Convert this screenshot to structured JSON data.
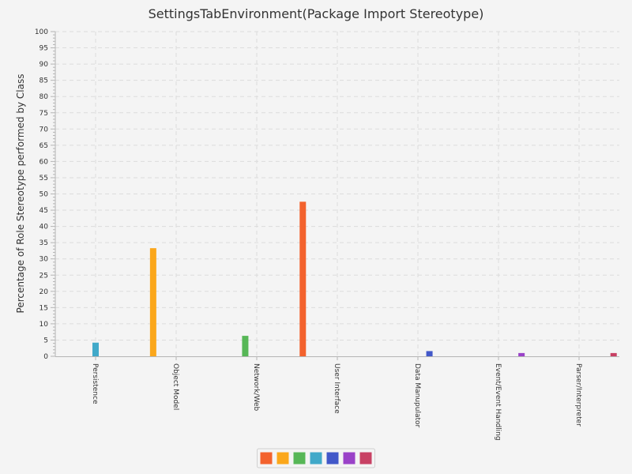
{
  "chart_data": {
    "type": "bar",
    "title": "SettingsTabEnvironment(Package Import Stereotype)",
    "xlabel": "",
    "ylabel": "Percentage of Role Stereotype performed by Class",
    "ylim": [
      0,
      100
    ],
    "y_major_step": 5,
    "y_minor_step": 1,
    "grid": true,
    "legend_position": "bottom",
    "categories": [
      "Persistence",
      "Object Model",
      "Network/Web",
      "User Interface",
      "Data Manupulator",
      "Event/Event Handling",
      "Parser/Interpreter"
    ],
    "series": [
      {
        "color": "#f3622d",
        "values": [
          0,
          0,
          0,
          47.6,
          0,
          0,
          0
        ]
      },
      {
        "color": "#fba71b",
        "values": [
          0,
          33.3,
          0,
          0,
          0,
          0,
          0
        ]
      },
      {
        "color": "#57b757",
        "values": [
          0,
          0,
          6.3,
          0,
          0,
          0,
          0
        ]
      },
      {
        "color": "#41a9c9",
        "values": [
          4.2,
          0,
          0,
          0,
          0,
          0,
          0
        ]
      },
      {
        "color": "#4258c9",
        "values": [
          0,
          0,
          0,
          0,
          1.6,
          0,
          0
        ]
      },
      {
        "color": "#9a42c8",
        "values": [
          0,
          0,
          0,
          0,
          0,
          1.0,
          0
        ]
      },
      {
        "color": "#c84164",
        "values": [
          0,
          0,
          0,
          0,
          0,
          0,
          1.0
        ]
      }
    ]
  }
}
